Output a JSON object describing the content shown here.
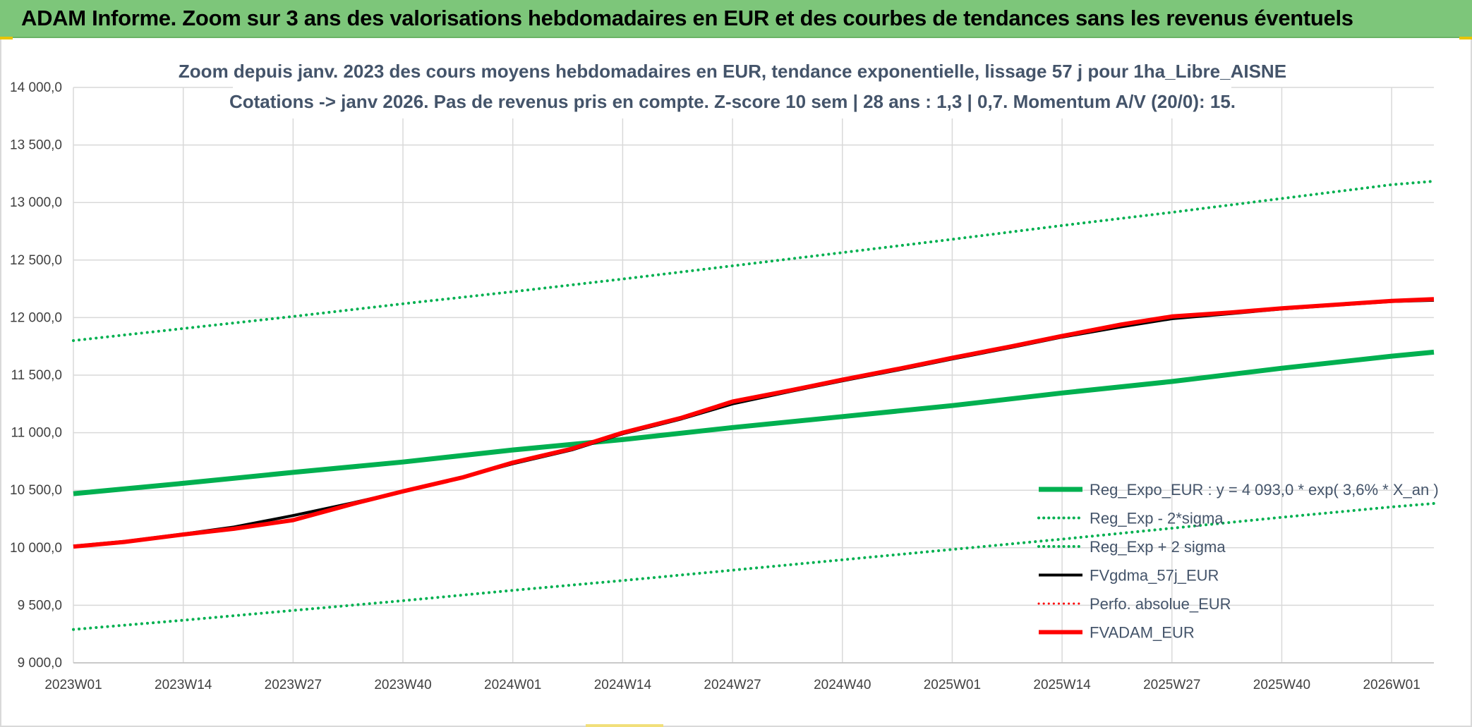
{
  "header": {
    "title": "ADAM Informe. Zoom sur 3 ans des valorisations hebdomadaires en EUR et des courbes de tendances sans les revenus éventuels"
  },
  "colors": {
    "banner": "#7dc67a",
    "trend_green": "#00b050",
    "black_line": "#000000",
    "red_line": "#ff0000",
    "grid": "#d9d9d9",
    "title_text": "#44546a"
  },
  "chart_data": {
    "type": "line",
    "title": "Zoom depuis janv. 2023 des cours moyens hebdomadaires en EUR, tendance exponentielle, lissage 57 j pour 1ha_Libre_AISNE",
    "subtitle": "Cotations -> janv 2026. Pas de revenus pris en compte. Z-score 10 sem | 28 ans : 1,3 | 0,7. Momentum A/V (20/0): 15.",
    "xlabel": "",
    "ylabel": "",
    "ylim": [
      9000,
      14000
    ],
    "y_ticks": [
      "14 000,0",
      "13 500,0",
      "13 000,0",
      "12 500,0",
      "12 000,0",
      "11 500,0",
      "11 000,0",
      "10 500,0",
      "10 000,0",
      "9 500,0",
      "9 000,0"
    ],
    "x_ticks": [
      "2023W01",
      "2023W14",
      "2023W27",
      "2023W40",
      "2024W01",
      "2024W14",
      "2024W27",
      "2024W40",
      "2025W01",
      "2025W14",
      "2025W27",
      "2025W40",
      "2026W01"
    ],
    "x_range_weeks": [
      0,
      161
    ],
    "grid": true,
    "legend_position": "bottom-right",
    "series": [
      {
        "name": "Reg_Expo_EUR : y = 4 093,0 * exp( 3,6% *  X_an )",
        "style": "solid",
        "color": "#00b050",
        "width": 7,
        "points": [
          [
            0,
            10470
          ],
          [
            13,
            10560
          ],
          [
            26,
            10655
          ],
          [
            39,
            10745
          ],
          [
            52,
            10850
          ],
          [
            65,
            10940
          ],
          [
            78,
            11045
          ],
          [
            91,
            11140
          ],
          [
            104,
            11235
          ],
          [
            117,
            11345
          ],
          [
            130,
            11445
          ],
          [
            143,
            11560
          ],
          [
            156,
            11665
          ],
          [
            161,
            11700
          ]
        ]
      },
      {
        "name": "Reg_Exp - 2*sigma",
        "style": "dotted",
        "color": "#00b050",
        "width": 4,
        "points": [
          [
            0,
            9290
          ],
          [
            13,
            9370
          ],
          [
            26,
            9455
          ],
          [
            39,
            9540
          ],
          [
            52,
            9630
          ],
          [
            65,
            9715
          ],
          [
            78,
            9805
          ],
          [
            91,
            9895
          ],
          [
            104,
            9985
          ],
          [
            117,
            10075
          ],
          [
            130,
            10170
          ],
          [
            143,
            10265
          ],
          [
            156,
            10355
          ],
          [
            161,
            10385
          ]
        ]
      },
      {
        "name": "Reg_Exp + 2 sigma",
        "style": "dotted",
        "color": "#00b050",
        "width": 4,
        "points": [
          [
            0,
            11800
          ],
          [
            13,
            11905
          ],
          [
            26,
            12010
          ],
          [
            39,
            12120
          ],
          [
            52,
            12225
          ],
          [
            65,
            12335
          ],
          [
            78,
            12450
          ],
          [
            91,
            12565
          ],
          [
            104,
            12680
          ],
          [
            117,
            12800
          ],
          [
            130,
            12915
          ],
          [
            143,
            13035
          ],
          [
            156,
            13155
          ],
          [
            161,
            13185
          ]
        ]
      },
      {
        "name": "FVgdma_57j_EUR",
        "style": "solid",
        "color": "#000000",
        "width": 4,
        "points": [
          [
            0,
            10015
          ],
          [
            6,
            10055
          ],
          [
            13,
            10120
          ],
          [
            19,
            10180
          ],
          [
            26,
            10280
          ],
          [
            33,
            10390
          ],
          [
            39,
            10490
          ],
          [
            46,
            10610
          ],
          [
            52,
            10730
          ],
          [
            59,
            10850
          ],
          [
            65,
            10990
          ],
          [
            72,
            11120
          ],
          [
            78,
            11250
          ],
          [
            85,
            11360
          ],
          [
            91,
            11450
          ],
          [
            98,
            11550
          ],
          [
            104,
            11640
          ],
          [
            111,
            11740
          ],
          [
            117,
            11830
          ],
          [
            124,
            11920
          ],
          [
            130,
            11990
          ],
          [
            137,
            12035
          ],
          [
            143,
            12075
          ],
          [
            150,
            12110
          ],
          [
            156,
            12140
          ],
          [
            161,
            12150
          ]
        ]
      },
      {
        "name": "Perfo. absolue_EUR",
        "style": "dotted",
        "color": "#ff0000",
        "width": 3,
        "points": []
      },
      {
        "name": "FVADAM_EUR",
        "style": "solid",
        "color": "#ff0000",
        "width": 6,
        "points": [
          [
            0,
            10010
          ],
          [
            6,
            10050
          ],
          [
            13,
            10115
          ],
          [
            19,
            10165
          ],
          [
            26,
            10240
          ],
          [
            33,
            10380
          ],
          [
            39,
            10490
          ],
          [
            46,
            10610
          ],
          [
            52,
            10740
          ],
          [
            59,
            10860
          ],
          [
            65,
            11000
          ],
          [
            72,
            11130
          ],
          [
            78,
            11270
          ],
          [
            85,
            11370
          ],
          [
            91,
            11460
          ],
          [
            98,
            11560
          ],
          [
            104,
            11650
          ],
          [
            111,
            11750
          ],
          [
            117,
            11840
          ],
          [
            124,
            11940
          ],
          [
            130,
            12010
          ],
          [
            137,
            12045
          ],
          [
            143,
            12080
          ],
          [
            150,
            12115
          ],
          [
            156,
            12145
          ],
          [
            161,
            12160
          ]
        ]
      }
    ]
  }
}
